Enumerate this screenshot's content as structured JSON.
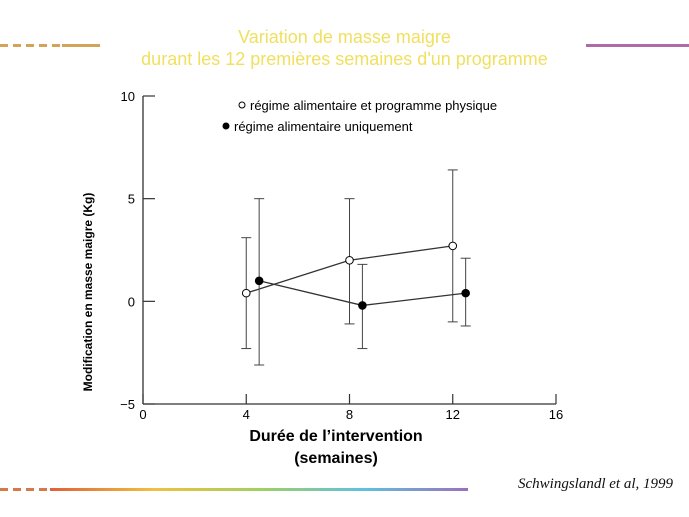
{
  "slide": {
    "title_line1": "Variation de masse maigre",
    "title_line2": "durant les 12 premières semaines d'un programme",
    "citation": "Schwingslandl et al, 1999"
  },
  "chart_data": {
    "type": "line",
    "xlabel_line1": "Durée de l’intervention",
    "xlabel_line2": "(semaines)",
    "ylabel": "Modification en masse maigre (Kg)",
    "xlim": [
      0,
      16
    ],
    "ylim": [
      -5,
      10
    ],
    "x_ticks": [
      "0",
      "4",
      "8",
      "12",
      "16"
    ],
    "y_ticks": [
      "−5",
      "0",
      "5",
      "10"
    ],
    "x_tick_values": [
      0,
      4,
      8,
      12,
      16
    ],
    "y_tick_values": [
      -5,
      0,
      5,
      10
    ],
    "series": [
      {
        "name": "régime alimentaire et programme physique",
        "marker": "open",
        "points": [
          {
            "x": 4,
            "y": 0.4,
            "lo": -2.3,
            "hi": 3.1
          },
          {
            "x": 8,
            "y": 2.0,
            "lo": -1.1,
            "hi": 5.0
          },
          {
            "x": 12,
            "y": 2.7,
            "lo": -1.0,
            "hi": 6.4
          }
        ]
      },
      {
        "name": "régime alimentaire uniquement",
        "marker": "filled",
        "points": [
          {
            "x": 4.5,
            "y": 1.0,
            "lo": -3.1,
            "hi": 5.0
          },
          {
            "x": 8.5,
            "y": -0.2,
            "lo": -2.3,
            "hi": 1.8
          },
          {
            "x": 12.5,
            "y": 0.4,
            "lo": -1.2,
            "hi": 2.1
          }
        ]
      }
    ],
    "legend_position": "top",
    "grid": false
  }
}
